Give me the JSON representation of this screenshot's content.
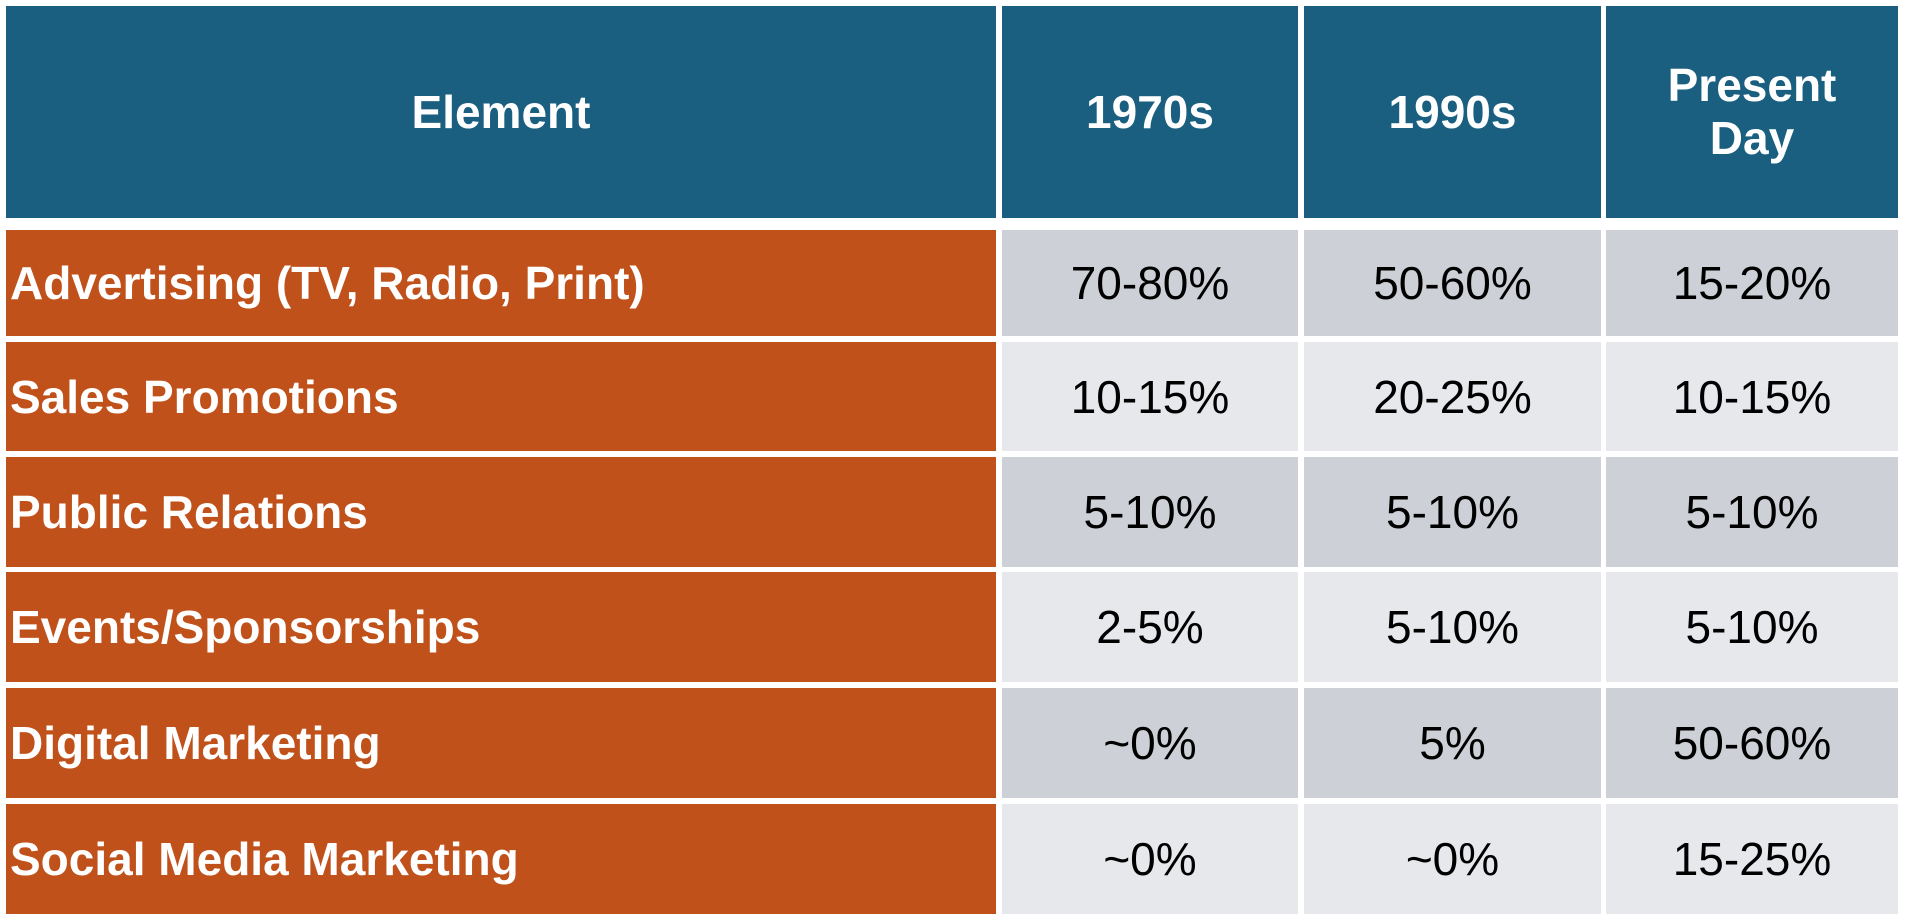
{
  "table": {
    "header": [
      "Element",
      "1970s",
      "1990s",
      "Present Day"
    ],
    "rows": [
      [
        "Advertising (TV, Radio, Print)",
        "70-80%",
        "50-60%",
        "15-20%"
      ],
      [
        "Sales Promotions",
        "10-15%",
        "20-25%",
        "10-15%"
      ],
      [
        "Public Relations",
        "5-10%",
        "5-10%",
        "5-10%"
      ],
      [
        "Events/Sponsorships",
        "2-5%",
        "5-10%",
        "5-10%"
      ],
      [
        "Digital Marketing",
        "~0%",
        "5%",
        "50-60%"
      ],
      [
        "Social Media Marketing",
        "~0%",
        "~0%",
        "15-25%"
      ]
    ]
  }
}
